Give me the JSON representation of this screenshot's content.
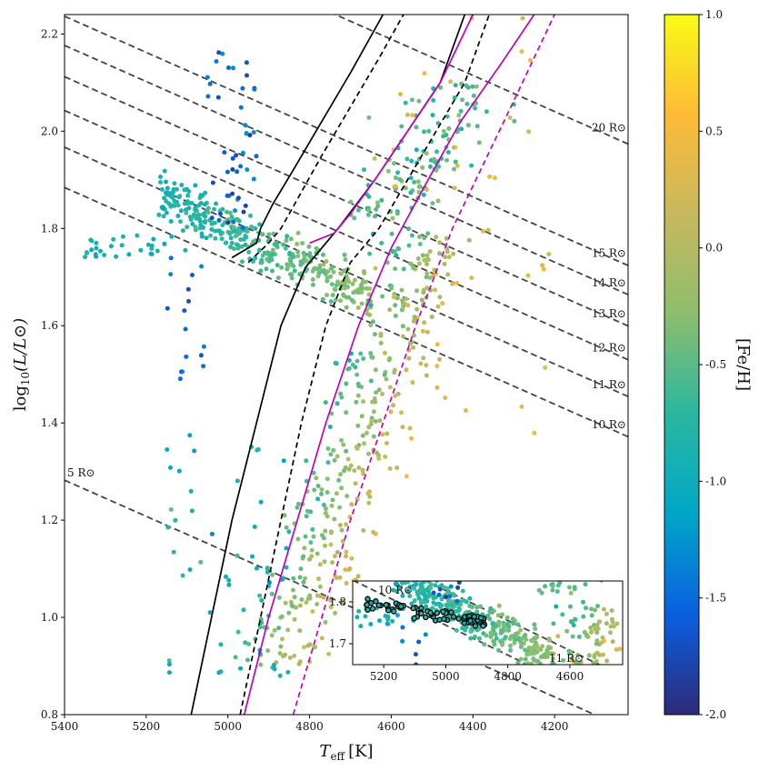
{
  "chart_data": {
    "type": "scatter",
    "title": "",
    "xlabel": "T_eff [K]",
    "xlabel_main": "T",
    "xlabel_sub": "eff",
    "xlabel_unit": "[K]",
    "ylabel": "log10(L/L⊙)",
    "ylabel_prefix": "log",
    "ylabel_sub": "10",
    "ylabel_body": "(L/L⊙)",
    "xlim": [
      5400,
      4020
    ],
    "ylim": [
      0.8,
      2.24
    ],
    "xticks": [
      5400,
      5200,
      5000,
      4800,
      4600,
      4400,
      4200
    ],
    "xtick_labels": [
      "5400",
      "5200",
      "5000",
      "4800",
      "4600",
      "4400",
      "4200"
    ],
    "yticks": [
      0.8,
      1.0,
      1.2,
      1.4,
      1.6,
      1.8,
      2.0,
      2.2
    ],
    "ytick_labels": [
      "0.8",
      "1.0",
      "1.2",
      "1.4",
      "1.6",
      "1.8",
      "2.0",
      "2.2"
    ],
    "colorbar": {
      "label": "[Fe/H]",
      "range": [
        -2.0,
        1.0
      ],
      "ticks": [
        -2.0,
        -1.5,
        -1.0,
        -0.5,
        0.0,
        0.5,
        1.0
      ],
      "tick_labels": [
        "-2.0",
        "-1.5",
        "-1.0",
        "-0.5",
        "0.0",
        "0.5",
        "1.0"
      ],
      "colormap": [
        "#2e2a7a",
        "#0b5fe0",
        "#00a6c8",
        "#2ab7a0",
        "#8cbe6e",
        "#c8b85e",
        "#fdbb38",
        "#f9fb14"
      ]
    },
    "radius_lines": [
      {
        "label": "5 R⊙",
        "radius": 5
      },
      {
        "label": "10 R⊙",
        "radius": 10
      },
      {
        "label": "11 R⊙",
        "radius": 11
      },
      {
        "label": "12 R⊙",
        "radius": 12
      },
      {
        "label": "13 R⊙",
        "radius": 13
      },
      {
        "label": "14 R⊙",
        "radius": 14
      },
      {
        "label": "15 R⊙",
        "radius": 15
      },
      {
        "label": "20 R⊙",
        "radius": 20
      }
    ],
    "tracks": [
      {
        "name": "black solid left",
        "color": "#000000",
        "style": "solid",
        "points": [
          [
            5090,
            0.8
          ],
          [
            5040,
            1.0
          ],
          [
            4990,
            1.2
          ],
          [
            4930,
            1.4
          ],
          [
            4870,
            1.6
          ],
          [
            4810,
            1.72
          ],
          [
            4730,
            1.8
          ],
          [
            4640,
            1.9
          ],
          [
            4560,
            2.0
          ],
          [
            4480,
            2.1
          ],
          [
            4420,
            2.24
          ]
        ]
      },
      {
        "name": "black dashed left",
        "color": "#000000",
        "style": "dashed",
        "points": [
          [
            4970,
            0.8
          ],
          [
            4920,
            1.0
          ],
          [
            4870,
            1.2
          ],
          [
            4820,
            1.4
          ],
          [
            4760,
            1.6
          ],
          [
            4700,
            1.73
          ],
          [
            4630,
            1.8
          ],
          [
            4560,
            1.9
          ],
          [
            4490,
            2.0
          ],
          [
            4420,
            2.1
          ],
          [
            4360,
            2.24
          ]
        ]
      },
      {
        "name": "black solid loop",
        "color": "#000000",
        "style": "solid",
        "points": [
          [
            4990,
            1.74
          ],
          [
            4930,
            1.77
          ],
          [
            4920,
            1.8
          ],
          [
            4890,
            1.85
          ],
          [
            4840,
            1.92
          ],
          [
            4770,
            2.02
          ],
          [
            4700,
            2.12
          ],
          [
            4620,
            2.24
          ]
        ]
      },
      {
        "name": "black dashed loop",
        "color": "#000000",
        "style": "dashed",
        "points": [
          [
            4950,
            1.73
          ],
          [
            4900,
            1.77
          ],
          [
            4870,
            1.8
          ],
          [
            4830,
            1.86
          ],
          [
            4770,
            1.95
          ],
          [
            4700,
            2.05
          ],
          [
            4630,
            2.15
          ],
          [
            4570,
            2.24
          ]
        ]
      },
      {
        "name": "magenta solid",
        "color": "#c000c0",
        "style": "solid",
        "points": [
          [
            4960,
            0.8
          ],
          [
            4900,
            1.0
          ],
          [
            4830,
            1.2
          ],
          [
            4760,
            1.4
          ],
          [
            4680,
            1.6
          ],
          [
            4600,
            1.76
          ],
          [
            4510,
            1.9
          ],
          [
            4430,
            2.02
          ],
          [
            4330,
            2.14
          ],
          [
            4250,
            2.24
          ]
        ]
      },
      {
        "name": "magenta dashed",
        "color": "#c000c0",
        "style": "dashed",
        "points": [
          [
            4840,
            0.8
          ],
          [
            4770,
            1.0
          ],
          [
            4700,
            1.2
          ],
          [
            4620,
            1.4
          ],
          [
            4540,
            1.6
          ],
          [
            4450,
            1.8
          ],
          [
            4370,
            1.94
          ],
          [
            4290,
            2.08
          ],
          [
            4200,
            2.24
          ]
        ]
      },
      {
        "name": "magenta loop",
        "color": "#c000c0",
        "style": "solid",
        "points": [
          [
            4800,
            1.77
          ],
          [
            4740,
            1.79
          ],
          [
            4700,
            1.83
          ],
          [
            4640,
            1.9
          ],
          [
            4560,
            2.0
          ],
          [
            4480,
            2.1
          ],
          [
            4400,
            2.24
          ]
        ]
      }
    ],
    "inset": {
      "xlim": [
        5300,
        4430
      ],
      "ylim": [
        1.65,
        1.85
      ],
      "xticks": [
        5200,
        5000,
        4800,
        4600
      ],
      "xtick_labels": [
        "5200",
        "5000",
        "4800",
        "4600"
      ],
      "yticks": [
        1.7,
        1.8
      ],
      "ytick_labels": [
        "1.7",
        "1.8"
      ],
      "radius_lines": [
        {
          "label": "10 R⊙",
          "radius": 10
        },
        {
          "label": "11 R⊙",
          "radius": 11
        }
      ]
    },
    "series": [
      {
        "name": "stars",
        "note": "~900 red giant stars colored by [Fe/H]; clump near log L = 1.75, T_eff 4700–5150 K; RGB sequence down to log L = 0.9"
      }
    ]
  }
}
